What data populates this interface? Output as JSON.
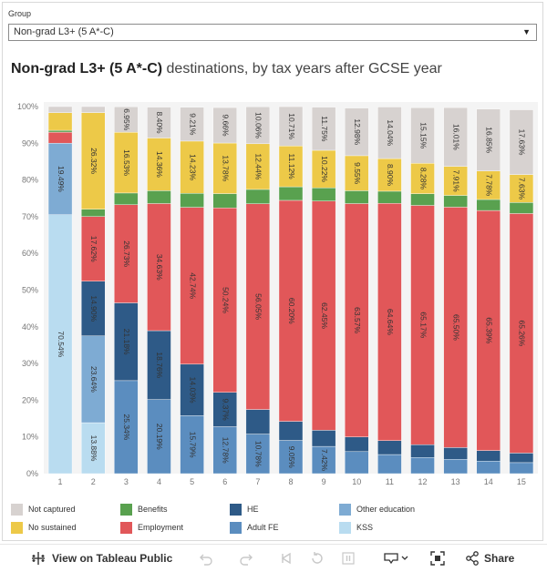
{
  "filter": {
    "label": "Group",
    "selected": "Non-grad L3+ (5 A*-C)"
  },
  "title": {
    "bold": "Non-grad L3+ (5 A*-C)",
    "rest": " destinations, by tax years after GCSE year"
  },
  "toolbar": {
    "view_label": "View on Tableau Public",
    "share_label": "Share"
  },
  "chart_data": {
    "type": "bar",
    "stacked": true,
    "categories": [
      "1",
      "2",
      "3",
      "4",
      "5",
      "6",
      "7",
      "8",
      "9",
      "10",
      "11",
      "12",
      "13",
      "14",
      "15"
    ],
    "y_ticks": [
      "0%",
      "10%",
      "20%",
      "30%",
      "40%",
      "50%",
      "60%",
      "70%",
      "80%",
      "90%",
      "100%"
    ],
    "ylim": [
      0,
      100
    ],
    "stack_order": [
      "KSS",
      "Adult FE",
      "Other education",
      "HE",
      "Employment",
      "Benefits",
      "No sustained",
      "Not captured"
    ],
    "series": [
      {
        "name": "KSS",
        "color": "#b9dcf0",
        "values": [
          70.54,
          13.88,
          0,
          0,
          0,
          0,
          0,
          0,
          0,
          0,
          0,
          0,
          0,
          0,
          0
        ],
        "labels": [
          "70.54%",
          "13.88%",
          "",
          "",
          "",
          "",
          "",
          "",
          "",
          "",
          "",
          "",
          "",
          "",
          ""
        ]
      },
      {
        "name": "Adult FE",
        "color": "#5b8dbf",
        "values": [
          0,
          0,
          25.34,
          20.19,
          15.79,
          12.78,
          10.78,
          9.05,
          7.42,
          6.0,
          5.2,
          4.4,
          3.9,
          3.4,
          3.0
        ],
        "labels": [
          "",
          "",
          "25.34%",
          "20.19%",
          "15.79%",
          "12.78%",
          "10.78%",
          "9.05%",
          "7.42%",
          "",
          "",
          "",
          "",
          "",
          ""
        ]
      },
      {
        "name": "Other education",
        "color": "#7eabd3",
        "values": [
          19.49,
          23.64,
          0,
          0,
          0,
          0,
          0,
          0,
          0,
          0,
          0,
          0,
          0,
          0,
          0
        ],
        "labels": [
          "19.49%",
          "23.64%",
          "",
          "",
          "",
          "",
          "",
          "",
          "",
          "",
          "",
          "",
          "",
          "",
          ""
        ]
      },
      {
        "name": "HE",
        "color": "#2e5a87",
        "values": [
          0,
          14.9,
          21.18,
          18.76,
          14.03,
          9.37,
          6.7,
          5.2,
          4.4,
          4.0,
          3.8,
          3.5,
          3.2,
          2.9,
          2.6
        ],
        "labels": [
          "",
          "14.90%",
          "21.18%",
          "18.76%",
          "14.03%",
          "9.37%",
          "",
          "",
          "",
          "",
          "",
          "",
          "",
          "",
          ""
        ]
      },
      {
        "name": "Employment",
        "color": "#e15759",
        "values": [
          3.0,
          17.62,
          26.73,
          34.63,
          42.74,
          50.24,
          56.05,
          60.2,
          62.45,
          63.57,
          64.64,
          65.17,
          65.5,
          65.39,
          65.26
        ],
        "labels": [
          "",
          "17.62%",
          "26.73%",
          "34.63%",
          "42.74%",
          "50.24%",
          "56.05%",
          "60.20%",
          "62.45%",
          "63.57%",
          "64.64%",
          "65.17%",
          "65.50%",
          "65.39%",
          "65.26%"
        ]
      },
      {
        "name": "Benefits",
        "color": "#59a14f",
        "values": [
          0.5,
          2.0,
          3.2,
          3.5,
          3.8,
          3.9,
          3.9,
          3.7,
          3.6,
          3.5,
          3.3,
          3.2,
          3.2,
          3.0,
          3.0
        ],
        "labels": [
          "",
          "",
          "",
          "",
          "",
          "",
          "",
          "",
          "",
          "",
          "",
          "",
          "",
          "",
          ""
        ]
      },
      {
        "name": "No sustained",
        "color": "#edc948",
        "values": [
          4.8,
          26.32,
          16.53,
          14.36,
          14.23,
          13.78,
          12.44,
          11.12,
          10.22,
          9.55,
          8.9,
          8.28,
          7.91,
          7.78,
          7.63
        ],
        "labels": [
          "",
          "26.32%",
          "16.53%",
          "14.36%",
          "14.23%",
          "13.78%",
          "12.44%",
          "11.12%",
          "10.22%",
          "9.55%",
          "8.90%",
          "8.28%",
          "7.91%",
          "7.78%",
          "7.63%"
        ]
      },
      {
        "name": "Not captured",
        "color": "#d7d2d0",
        "values": [
          1.67,
          1.64,
          6.95,
          8.4,
          9.21,
          9.66,
          10.06,
          10.71,
          11.75,
          12.98,
          14.04,
          15.15,
          16.01,
          16.85,
          17.63
        ],
        "labels": [
          "",
          "",
          "6.95%",
          "8.40%",
          "9.21%",
          "9.66%",
          "10.06%",
          "10.71%",
          "11.75%",
          "12.98%",
          "14.04%",
          "15.15%",
          "16.01%",
          "16.85%",
          "17.63%"
        ]
      }
    ]
  },
  "legend": [
    {
      "name": "Not captured",
      "color": "#d7d2d0"
    },
    {
      "name": "No sustained",
      "color": "#edc948"
    },
    {
      "name": "Benefits",
      "color": "#59a14f"
    },
    {
      "name": "Employment",
      "color": "#e15759"
    },
    {
      "name": "HE",
      "color": "#2e5a87"
    },
    {
      "name": "Adult FE",
      "color": "#5b8dbf"
    },
    {
      "name": "Other education",
      "color": "#7eabd3"
    },
    {
      "name": "KSS",
      "color": "#b9dcf0"
    }
  ]
}
